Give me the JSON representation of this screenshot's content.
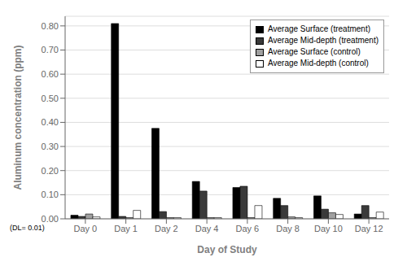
{
  "chart_data": {
    "type": "bar",
    "xlabel": "Day of Study",
    "ylabel": "Aluminum concentration (ppm)",
    "categories": [
      "Day 0",
      "Day 1",
      "Day 2",
      "Day 4",
      "Day 6",
      "Day 8",
      "Day 10",
      "Day 12"
    ],
    "series": [
      {
        "name": "Average Surface (treatment)",
        "color": "#000000",
        "values": [
          0.015,
          0.81,
          0.375,
          0.155,
          0.13,
          0.085,
          0.095,
          0.02
        ]
      },
      {
        "name": "Average Mid-depth (treatment)",
        "color": "#3a3a3a",
        "values": [
          0.01,
          0.01,
          0.03,
          0.115,
          0.135,
          0.055,
          0.04,
          0.055
        ]
      },
      {
        "name": "Average Surface (control)",
        "color": "#a0a0a0",
        "values": [
          0.02,
          0.005,
          0.005,
          0.005,
          0.005,
          0.008,
          0.025,
          0.005
        ]
      },
      {
        "name": "Average Mid-depth (control)",
        "color": "#ffffff",
        "values": [
          0.008,
          0.035,
          0.005,
          0.005,
          0.055,
          0.005,
          0.018,
          0.028
        ]
      }
    ],
    "ylim": [
      0.0,
      0.84
    ],
    "yticks": [
      {
        "value": 0.0,
        "label": "0.00"
      },
      {
        "value": 0.1,
        "label": "0.10"
      },
      {
        "value": 0.2,
        "label": "0.20"
      },
      {
        "value": 0.3,
        "label": "0.30"
      },
      {
        "value": 0.4,
        "label": "0.40"
      },
      {
        "value": 0.5,
        "label": "0.50"
      },
      {
        "value": 0.6,
        "label": "0.60"
      },
      {
        "value": 0.7,
        "label": "0.70"
      },
      {
        "value": 0.8,
        "label": "0.80"
      }
    ],
    "grid": true,
    "legend": "upper right",
    "annotations": [
      "(DL= 0.01)"
    ]
  }
}
